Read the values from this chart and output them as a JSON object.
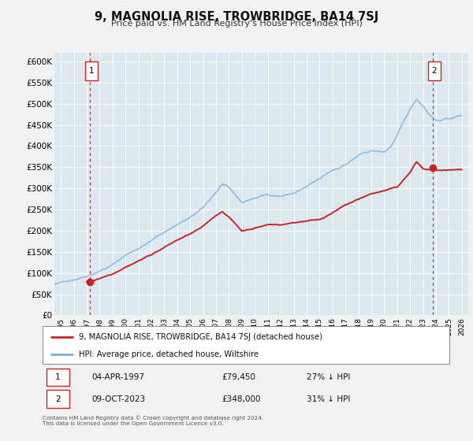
{
  "title": "9, MAGNOLIA RISE, TROWBRIDGE, BA14 7SJ",
  "subtitle": "Price paid vs. HM Land Registry's House Price Index (HPI)",
  "bg_color": "#f2f2f2",
  "plot_bg_color": "#dce8f0",
  "grid_color": "#ffffff",
  "sale1_date": 1997.27,
  "sale1_price": 79450,
  "sale2_date": 2023.77,
  "sale2_price": 348000,
  "hpi_label": "HPI: Average price, detached house, Wiltshire",
  "prop_label": "9, MAGNOLIA RISE, TROWBRIDGE, BA14 7SJ (detached house)",
  "footer": "Contains HM Land Registry data © Crown copyright and database right 2024.\nThis data is licensed under the Open Government Licence v3.0.",
  "xlim": [
    1994.5,
    2026.5
  ],
  "ylim": [
    0,
    620000
  ],
  "yticks": [
    0,
    50000,
    100000,
    150000,
    200000,
    250000,
    300000,
    350000,
    400000,
    450000,
    500000,
    550000,
    600000
  ],
  "ytick_labels": [
    "£0",
    "£50K",
    "£100K",
    "£150K",
    "£200K",
    "£250K",
    "£300K",
    "£350K",
    "£400K",
    "£450K",
    "£500K",
    "£550K",
    "£600K"
  ],
  "xticks": [
    1995,
    1996,
    1997,
    1998,
    1999,
    2000,
    2001,
    2002,
    2003,
    2004,
    2005,
    2006,
    2007,
    2008,
    2009,
    2010,
    2011,
    2012,
    2013,
    2014,
    2015,
    2016,
    2017,
    2018,
    2019,
    2020,
    2021,
    2022,
    2023,
    2024,
    2025,
    2026
  ],
  "hpi_color": "#7ab0d8",
  "prop_color": "#cc2222",
  "vline_color": "#cc2222",
  "marker_color": "#cc2222",
  "sale1_label": "1",
  "sale2_label": "2",
  "info1_date": "04-APR-1997",
  "info1_price": "£79,450",
  "info1_hpi": "27% ↓ HPI",
  "info2_date": "09-OCT-2023",
  "info2_price": "£348,000",
  "info2_hpi": "31% ↓ HPI"
}
